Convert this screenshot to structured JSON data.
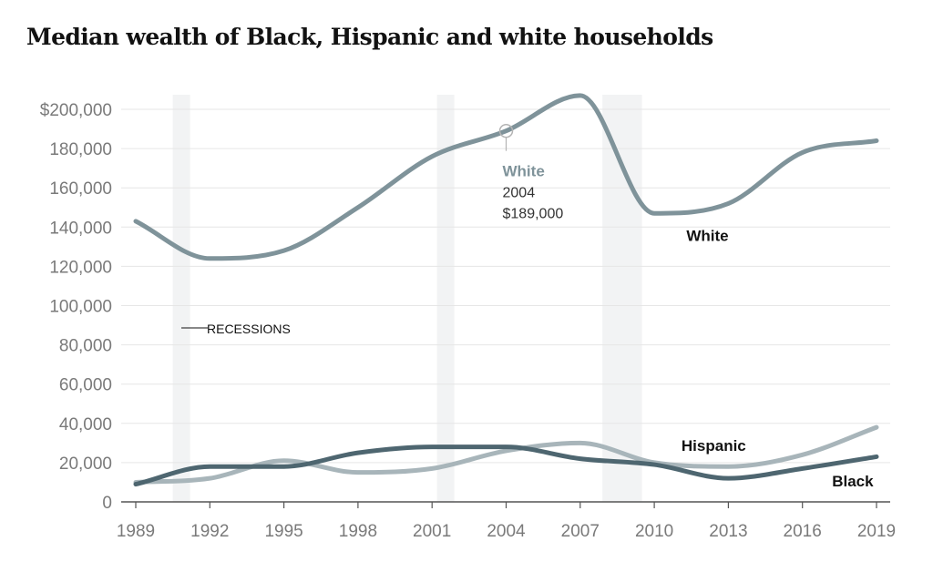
{
  "chart_data": {
    "type": "line",
    "title": "Median wealth of Black, Hispanic and white households",
    "xlabel": "",
    "ylabel": "",
    "x": [
      1989,
      1992,
      1995,
      1998,
      2001,
      2004,
      2007,
      2010,
      2013,
      2016,
      2019
    ],
    "xlim": [
      1989,
      2019
    ],
    "ylim": [
      0,
      200000
    ],
    "grid": true,
    "y_ticks": [
      0,
      20000,
      40000,
      60000,
      80000,
      100000,
      120000,
      140000,
      160000,
      180000,
      200000
    ],
    "y_tick_labels": [
      "0",
      "20,000",
      "40,000",
      "60,000",
      "80,000",
      "100,000",
      "120,000",
      "140,000",
      "160,000",
      "180,000",
      "$200,000"
    ],
    "x_tick_labels": [
      "1989",
      "1992",
      "1995",
      "1998",
      "2001",
      "2004",
      "2007",
      "2010",
      "2013",
      "2016",
      "2019"
    ],
    "series": [
      {
        "name": "White",
        "color": "#7f939a",
        "values": [
          143000,
          124000,
          128000,
          150000,
          176000,
          189000,
          207000,
          147000,
          152000,
          178000,
          184000
        ]
      },
      {
        "name": "Hispanic",
        "color": "#a8b5ba",
        "values": [
          10000,
          12000,
          21000,
          15000,
          17000,
          26000,
          30000,
          20000,
          18000,
          24000,
          38000
        ]
      },
      {
        "name": "Black",
        "color": "#4e6670",
        "values": [
          9000,
          18000,
          18000,
          25000,
          28000,
          28000,
          22000,
          19000,
          12000,
          17000,
          23000
        ]
      }
    ],
    "recessions": [
      {
        "start": 1990.5,
        "end": 1991.2
      },
      {
        "start": 2001.2,
        "end": 2001.9
      },
      {
        "start": 2007.9,
        "end": 2009.5
      }
    ],
    "recession_label": "RECESSIONS",
    "annotation": {
      "series": "White",
      "title": "White",
      "year_label": "2004",
      "value_label": "$189,000",
      "year": 2004,
      "value": 189000
    },
    "series_labels": [
      {
        "text": "White",
        "year": 2011.3,
        "value": 133000
      },
      {
        "text": "Hispanic",
        "year": 2011.1,
        "value": 26000
      },
      {
        "text": "Black",
        "year": 2017.2,
        "value": 8000
      }
    ]
  }
}
